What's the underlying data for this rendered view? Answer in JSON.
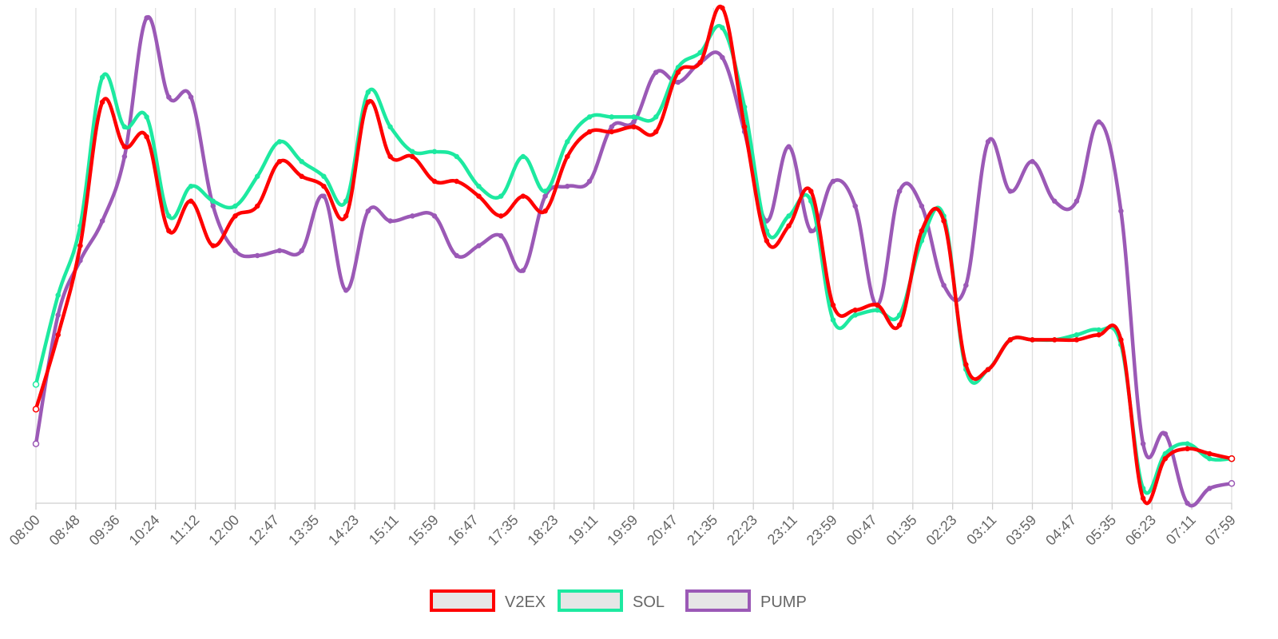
{
  "chart_data": {
    "type": "line",
    "title": "",
    "xlabel": "",
    "ylabel": "",
    "grid": "vertical",
    "y_axis": "not labeled (values read as relative units 0-100)",
    "ylim": [
      0,
      100
    ],
    "legend_position": "bottom-center",
    "x_tick_labels": [
      "08:00",
      "08:48",
      "09:36",
      "10:24",
      "11:12",
      "12:00",
      "12:47",
      "13:35",
      "14:23",
      "15:11",
      "15:59",
      "16:47",
      "17:35",
      "18:23",
      "19:11",
      "19:59",
      "20:47",
      "21:35",
      "22:23",
      "23:11",
      "23:59",
      "00:47",
      "01:35",
      "02:23",
      "03:11",
      "03:59",
      "04:47",
      "05:35",
      "06:23",
      "07:11",
      "07:59"
    ],
    "series": [
      {
        "name": "V2EX",
        "color": "#ff0000",
        "values": [
          19,
          34,
          52,
          81,
          72,
          74,
          55,
          61,
          52,
          58,
          60,
          69,
          66,
          64,
          58,
          81,
          70,
          70,
          65,
          65,
          62,
          58,
          62,
          59,
          70,
          75,
          75,
          76,
          75,
          87,
          89,
          100,
          76,
          53,
          56,
          63,
          40,
          39,
          40,
          36,
          55,
          57,
          28,
          27,
          33,
          33,
          33,
          33,
          34,
          33,
          1,
          9,
          11,
          10,
          9
        ]
      },
      {
        "name": "SOL",
        "color": "#1de9a0",
        "values": [
          24,
          42,
          56,
          86,
          76,
          78,
          58,
          64,
          61,
          60,
          66,
          73,
          69,
          66,
          61,
          83,
          76,
          71,
          71,
          70,
          64,
          62,
          70,
          63,
          73,
          78,
          78,
          78,
          78,
          88,
          91,
          96,
          80,
          55,
          58,
          61,
          37,
          38,
          39,
          38,
          53,
          58,
          27,
          27,
          33,
          33,
          33,
          34,
          35,
          32,
          3,
          10,
          12,
          9,
          9
        ]
      },
      {
        "name": "PUMP",
        "color": "#9b59b6",
        "values": [
          12,
          38,
          49,
          57,
          70,
          98,
          82,
          82,
          60,
          51,
          50,
          51,
          51,
          62,
          43,
          59,
          57,
          58,
          58,
          50,
          52,
          54,
          47,
          62,
          64,
          65,
          76,
          77,
          87,
          85,
          89,
          90,
          75,
          57,
          72,
          55,
          65,
          60,
          40,
          63,
          60,
          44,
          44,
          73,
          63,
          69,
          61,
          61,
          77,
          59,
          12,
          14,
          0,
          3,
          4
        ]
      }
    ]
  }
}
